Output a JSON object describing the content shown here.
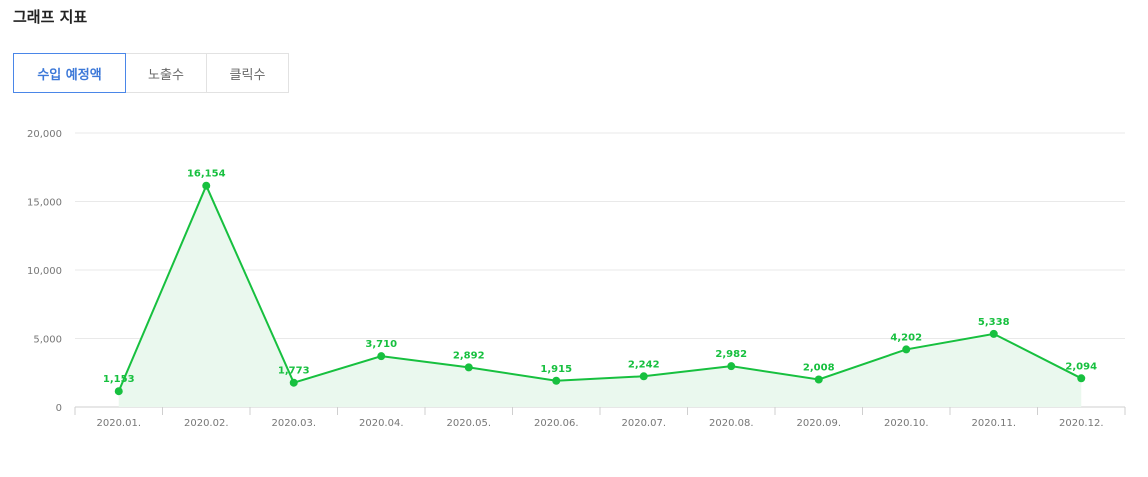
{
  "header": {
    "title": "그래프 지표"
  },
  "tabs": [
    {
      "label": "수입 예정액",
      "active": true
    },
    {
      "label": "노출수",
      "active": false
    },
    {
      "label": "클릭수",
      "active": false
    }
  ],
  "colors": {
    "line": "#17c03f",
    "area": "#eaf8ee",
    "accent": "#4a86e8"
  },
  "chart_data": {
    "type": "line",
    "title": "",
    "xlabel": "",
    "ylabel": "",
    "categories": [
      "2020.01.",
      "2020.02.",
      "2020.03.",
      "2020.04.",
      "2020.05.",
      "2020.06.",
      "2020.07.",
      "2020.08.",
      "2020.09.",
      "2020.10.",
      "2020.11.",
      "2020.12."
    ],
    "series": [
      {
        "values": [
          1153,
          16154,
          1773,
          3710,
          2892,
          1915,
          2242,
          2982,
          2008,
          4202,
          5338,
          2094
        ],
        "labels": [
          "1,153",
          "16,154",
          "1,773",
          "3,710",
          "2,892",
          "1,915",
          "2,242",
          "2,982",
          "2,008",
          "4,202",
          "5,338",
          "2,094"
        ]
      }
    ],
    "ylim": [
      0,
      20000
    ],
    "yticks": [
      0,
      5000,
      10000,
      15000,
      20000
    ],
    "ytick_labels": [
      "0",
      "5,000",
      "10,000",
      "15,000",
      "20,000"
    ],
    "grid": true,
    "area_fill": true,
    "legend": "none"
  }
}
